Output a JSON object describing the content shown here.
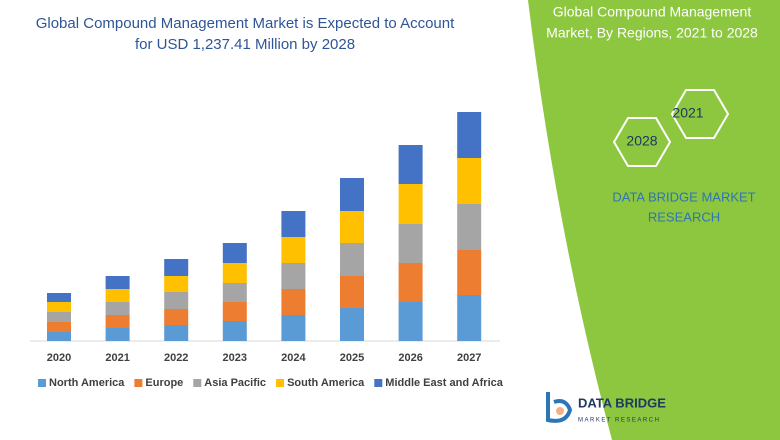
{
  "chart_data": {
    "type": "bar",
    "stacked": true,
    "title": [
      "Global Compound Management Market is Expected to Account",
      "for USD 1,237.41 Million by 2028"
    ],
    "categories": [
      "2020",
      "2021",
      "2022",
      "2023",
      "2024",
      "2025",
      "2026",
      "2027"
    ],
    "series": [
      {
        "name": "North America",
        "color": "#5b9bd5",
        "values": [
          9,
          13,
          16,
          20,
          26,
          33,
          39,
          46
        ]
      },
      {
        "name": "Europe",
        "color": "#ed7d31",
        "values": [
          10,
          13,
          16,
          19,
          26,
          32,
          39,
          45
        ]
      },
      {
        "name": "Asia Pacific",
        "color": "#a5a5a5",
        "values": [
          10,
          13,
          17,
          19,
          26,
          33,
          39,
          46
        ]
      },
      {
        "name": "South America",
        "color": "#ffc000",
        "values": [
          10,
          13,
          16,
          20,
          26,
          32,
          40,
          46
        ]
      },
      {
        "name": "Middle East and Africa",
        "color": "#4472c4",
        "values": [
          9,
          13,
          17,
          20,
          26,
          33,
          39,
          46
        ]
      }
    ]
  },
  "panel": {
    "title": [
      "Global Compound Management",
      "Market, By Regions, 2021 to 2028"
    ],
    "hexagons": [
      "2021",
      "2028"
    ],
    "brand": [
      "DATA BRIDGE MARKET",
      "RESEARCH"
    ]
  },
  "logo": {
    "name": "DATA BRIDGE",
    "tagline": "MARKET RESEARCH"
  }
}
